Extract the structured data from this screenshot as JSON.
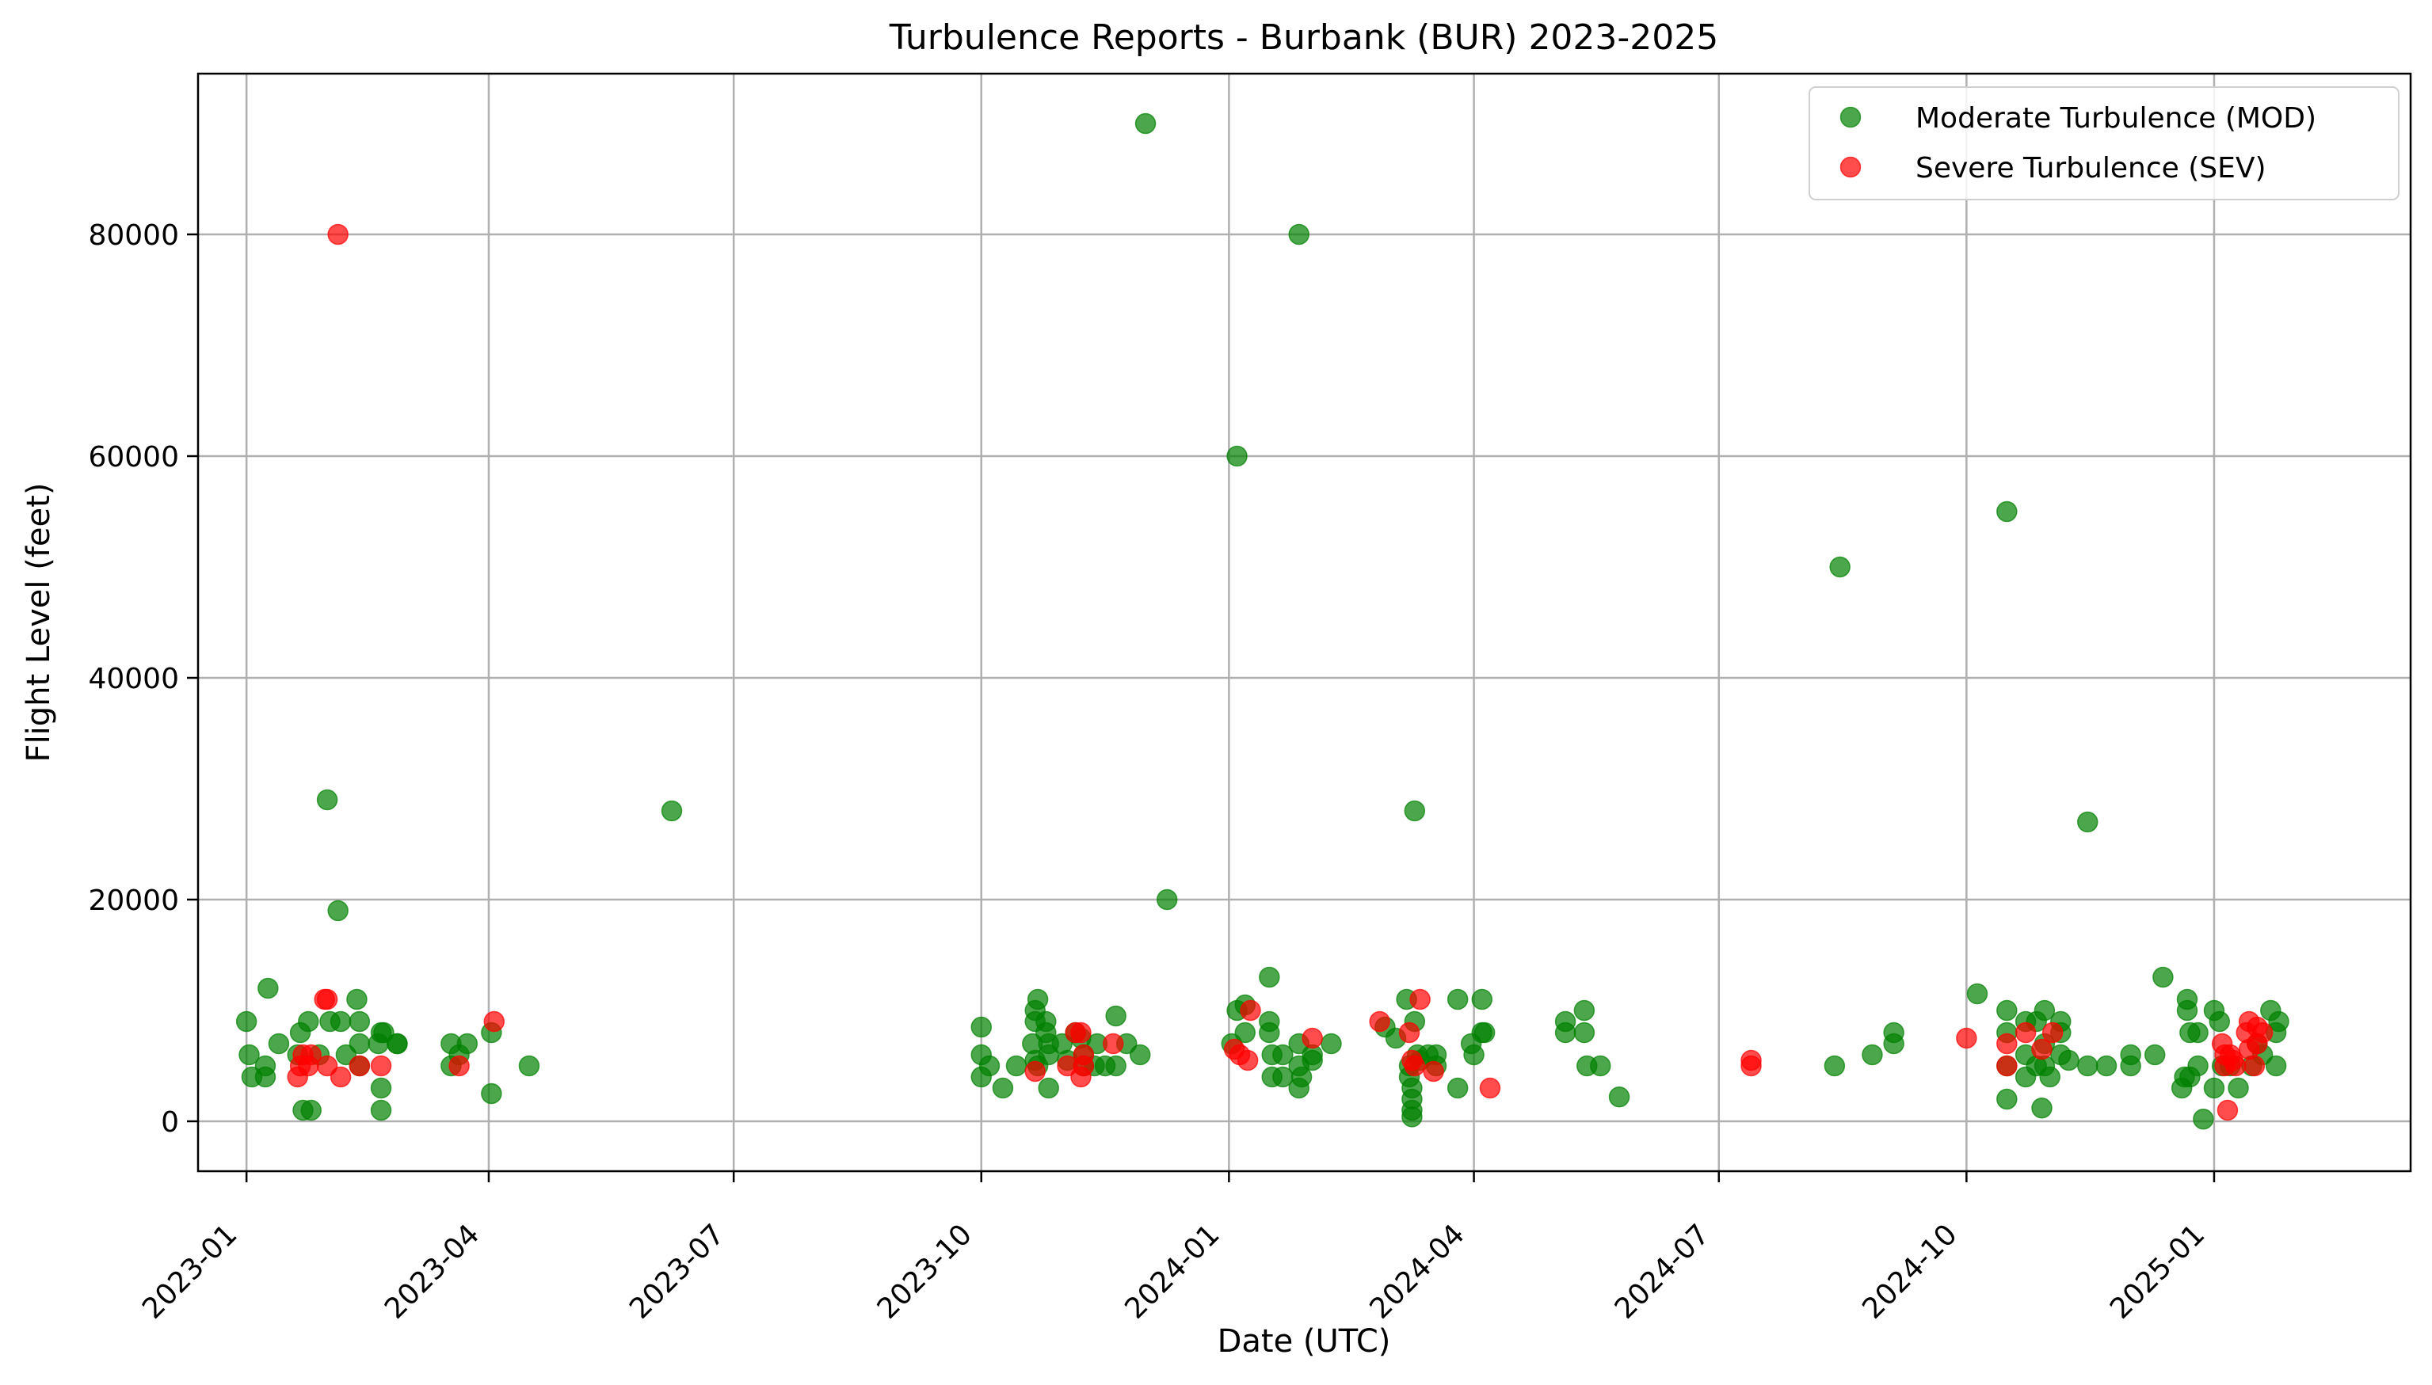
{
  "chart_data": {
    "type": "scatter",
    "title": "Turbulence Reports - Burbank (BUR) 2023-2025",
    "xlabel": "Date (UTC)",
    "ylabel": "Flight Level (feet)",
    "x_type": "date",
    "xlim": [
      "2022-12-14",
      "2025-03-15"
    ],
    "ylim": [
      -4500,
      94500
    ],
    "x_ticks": [
      "2023-01-01",
      "2023-04-01",
      "2023-07-01",
      "2023-10-01",
      "2024-01-01",
      "2024-04-01",
      "2024-07-01",
      "2024-10-01",
      "2025-01-01"
    ],
    "x_tick_labels": [
      "2023-01",
      "2023-04",
      "2023-07",
      "2023-10",
      "2024-01",
      "2024-04",
      "2024-07",
      "2024-10",
      "2025-01"
    ],
    "y_ticks": [
      0,
      20000,
      40000,
      60000,
      80000
    ],
    "y_tick_labels": [
      "0",
      "20000",
      "40000",
      "60000",
      "80000"
    ],
    "grid": true,
    "legend_position": "top-right",
    "series": [
      {
        "name": "Moderate Turbulence (MOD)",
        "color": "#008000",
        "points": [
          [
            "2023-01-01",
            9000
          ],
          [
            "2023-01-02",
            6000
          ],
          [
            "2023-01-03",
            4000
          ],
          [
            "2023-01-08",
            5000
          ],
          [
            "2023-01-08",
            4000
          ],
          [
            "2023-01-09",
            12000
          ],
          [
            "2023-01-13",
            7000
          ],
          [
            "2023-01-20",
            6000
          ],
          [
            "2023-01-21",
            8000
          ],
          [
            "2023-01-22",
            1000
          ],
          [
            "2023-01-24",
            9000
          ],
          [
            "2023-01-25",
            1000
          ],
          [
            "2023-01-28",
            6000
          ],
          [
            "2023-01-31",
            29000
          ],
          [
            "2023-02-01",
            9000
          ],
          [
            "2023-02-04",
            19000
          ],
          [
            "2023-02-05",
            9000
          ],
          [
            "2023-02-07",
            6000
          ],
          [
            "2023-02-11",
            11000
          ],
          [
            "2023-02-12",
            9000
          ],
          [
            "2023-02-12",
            7000
          ],
          [
            "2023-02-12",
            5000
          ],
          [
            "2023-02-19",
            7000
          ],
          [
            "2023-02-20",
            8000
          ],
          [
            "2023-02-20",
            3000
          ],
          [
            "2023-02-20",
            1000
          ],
          [
            "2023-02-21",
            8000
          ],
          [
            "2023-02-26",
            7000
          ],
          [
            "2023-02-26",
            7000
          ],
          [
            "2023-03-18",
            7000
          ],
          [
            "2023-03-18",
            5000
          ],
          [
            "2023-03-21",
            6000
          ],
          [
            "2023-03-24",
            7000
          ],
          [
            "2023-04-02",
            8000
          ],
          [
            "2023-04-02",
            2500
          ],
          [
            "2023-04-16",
            5000
          ],
          [
            "2023-06-08",
            28000
          ],
          [
            "2023-10-01",
            8500
          ],
          [
            "2023-10-01",
            6000
          ],
          [
            "2023-10-01",
            4000
          ],
          [
            "2023-10-04",
            5000
          ],
          [
            "2023-10-09",
            3000
          ],
          [
            "2023-10-14",
            5000
          ],
          [
            "2023-10-20",
            7000
          ],
          [
            "2023-10-21",
            10000
          ],
          [
            "2023-10-21",
            9000
          ],
          [
            "2023-10-21",
            5500
          ],
          [
            "2023-10-22",
            11000
          ],
          [
            "2023-10-22",
            5000
          ],
          [
            "2023-10-25",
            9000
          ],
          [
            "2023-10-25",
            8000
          ],
          [
            "2023-10-26",
            7000
          ],
          [
            "2023-10-26",
            6000
          ],
          [
            "2023-10-26",
            3000
          ],
          [
            "2023-10-31",
            7000
          ],
          [
            "2023-11-02",
            5500
          ],
          [
            "2023-11-05",
            8000
          ],
          [
            "2023-11-07",
            7500
          ],
          [
            "2023-11-08",
            6000
          ],
          [
            "2023-11-08",
            5000
          ],
          [
            "2023-11-12",
            5000
          ],
          [
            "2023-11-13",
            7000
          ],
          [
            "2023-11-16",
            5000
          ],
          [
            "2023-11-20",
            9500
          ],
          [
            "2023-11-20",
            5000
          ],
          [
            "2023-11-24",
            7000
          ],
          [
            "2023-11-29",
            6000
          ],
          [
            "2023-12-01",
            90000
          ],
          [
            "2023-12-09",
            20000
          ],
          [
            "2024-01-02",
            7000
          ],
          [
            "2024-01-04",
            60000
          ],
          [
            "2024-01-04",
            10000
          ],
          [
            "2024-01-07",
            10500
          ],
          [
            "2024-01-07",
            8000
          ],
          [
            "2024-01-16",
            13000
          ],
          [
            "2024-01-16",
            9000
          ],
          [
            "2024-01-16",
            8000
          ],
          [
            "2024-01-17",
            6000
          ],
          [
            "2024-01-17",
            4000
          ],
          [
            "2024-01-21",
            6000
          ],
          [
            "2024-01-21",
            4000
          ],
          [
            "2024-01-27",
            80000
          ],
          [
            "2024-01-27",
            7000
          ],
          [
            "2024-01-27",
            5000
          ],
          [
            "2024-01-27",
            3000
          ],
          [
            "2024-01-28",
            4000
          ],
          [
            "2024-02-01",
            6000
          ],
          [
            "2024-02-01",
            5500
          ],
          [
            "2024-02-08",
            7000
          ],
          [
            "2024-02-28",
            8500
          ],
          [
            "2024-03-03",
            7500
          ],
          [
            "2024-03-07",
            11000
          ],
          [
            "2024-03-08",
            5000
          ],
          [
            "2024-03-08",
            4000
          ],
          [
            "2024-03-09",
            3000
          ],
          [
            "2024-03-09",
            2000
          ],
          [
            "2024-03-09",
            1000
          ],
          [
            "2024-03-09",
            400
          ],
          [
            "2024-03-10",
            28000
          ],
          [
            "2024-03-10",
            9000
          ],
          [
            "2024-03-11",
            6000
          ],
          [
            "2024-03-12",
            5500
          ],
          [
            "2024-03-15",
            6000
          ],
          [
            "2024-03-18",
            6000
          ],
          [
            "2024-03-18",
            5000
          ],
          [
            "2024-03-26",
            11000
          ],
          [
            "2024-03-26",
            3000
          ],
          [
            "2024-03-31",
            7000
          ],
          [
            "2024-04-01",
            6000
          ],
          [
            "2024-04-04",
            11000
          ],
          [
            "2024-04-04",
            8000
          ],
          [
            "2024-04-05",
            8000
          ],
          [
            "2024-05-05",
            9000
          ],
          [
            "2024-05-05",
            8000
          ],
          [
            "2024-05-12",
            10000
          ],
          [
            "2024-05-12",
            8000
          ],
          [
            "2024-05-13",
            5000
          ],
          [
            "2024-05-18",
            5000
          ],
          [
            "2024-05-25",
            2200
          ],
          [
            "2024-08-13",
            5000
          ],
          [
            "2024-08-15",
            50000
          ],
          [
            "2024-08-27",
            6000
          ],
          [
            "2024-09-04",
            8000
          ],
          [
            "2024-09-04",
            7000
          ],
          [
            "2024-10-05",
            11500
          ],
          [
            "2024-10-16",
            55000
          ],
          [
            "2024-10-16",
            10000
          ],
          [
            "2024-10-16",
            8000
          ],
          [
            "2024-10-16",
            5000
          ],
          [
            "2024-10-16",
            2000
          ],
          [
            "2024-10-23",
            9000
          ],
          [
            "2024-10-23",
            6000
          ],
          [
            "2024-10-23",
            4000
          ],
          [
            "2024-10-27",
            9000
          ],
          [
            "2024-10-27",
            5000
          ],
          [
            "2024-10-29",
            1200
          ],
          [
            "2024-10-30",
            10000
          ],
          [
            "2024-10-30",
            7000
          ],
          [
            "2024-10-30",
            5000
          ],
          [
            "2024-11-01",
            4000
          ],
          [
            "2024-11-05",
            9000
          ],
          [
            "2024-11-05",
            8000
          ],
          [
            "2024-11-05",
            6000
          ],
          [
            "2024-11-08",
            5500
          ],
          [
            "2024-11-15",
            27000
          ],
          [
            "2024-11-15",
            5000
          ],
          [
            "2024-11-22",
            5000
          ],
          [
            "2024-12-01",
            6000
          ],
          [
            "2024-12-01",
            5000
          ],
          [
            "2024-12-10",
            6000
          ],
          [
            "2024-12-13",
            13000
          ],
          [
            "2024-12-20",
            3000
          ],
          [
            "2024-12-21",
            4000
          ],
          [
            "2024-12-22",
            11000
          ],
          [
            "2024-12-22",
            10000
          ],
          [
            "2024-12-23",
            8000
          ],
          [
            "2024-12-23",
            4000
          ],
          [
            "2024-12-26",
            8000
          ],
          [
            "2024-12-26",
            5000
          ],
          [
            "2024-12-28",
            200
          ],
          [
            "2025-01-01",
            10000
          ],
          [
            "2025-01-01",
            3000
          ],
          [
            "2025-01-03",
            9000
          ],
          [
            "2025-01-04",
            5000
          ],
          [
            "2025-01-07",
            5000
          ],
          [
            "2025-01-10",
            3000
          ],
          [
            "2025-01-15",
            5000
          ],
          [
            "2025-01-17",
            7000
          ],
          [
            "2025-01-19",
            6000
          ],
          [
            "2025-01-22",
            10000
          ],
          [
            "2025-01-24",
            8000
          ],
          [
            "2025-01-24",
            5000
          ],
          [
            "2025-01-25",
            9000
          ]
        ]
      },
      {
        "name": "Severe Turbulence (SEV)",
        "color": "#ff0000",
        "points": [
          [
            "2023-01-20",
            4000
          ],
          [
            "2023-01-21",
            5000
          ],
          [
            "2023-01-22",
            6000
          ],
          [
            "2023-01-24",
            5000
          ],
          [
            "2023-01-25",
            6000
          ],
          [
            "2023-01-30",
            11000
          ],
          [
            "2023-01-31",
            11000
          ],
          [
            "2023-01-31",
            5000
          ],
          [
            "2023-02-04",
            80000
          ],
          [
            "2023-02-05",
            4000
          ],
          [
            "2023-02-12",
            5000
          ],
          [
            "2023-02-20",
            5000
          ],
          [
            "2023-03-21",
            5000
          ],
          [
            "2023-04-03",
            9000
          ],
          [
            "2023-10-21",
            4500
          ],
          [
            "2023-11-02",
            5000
          ],
          [
            "2023-11-05",
            8000
          ],
          [
            "2023-11-07",
            8000
          ],
          [
            "2023-11-07",
            4000
          ],
          [
            "2023-11-08",
            6000
          ],
          [
            "2023-11-08",
            5000
          ],
          [
            "2023-11-19",
            7000
          ],
          [
            "2024-01-03",
            6500
          ],
          [
            "2024-01-05",
            6000
          ],
          [
            "2024-01-08",
            5500
          ],
          [
            "2024-01-09",
            10000
          ],
          [
            "2024-02-01",
            7500
          ],
          [
            "2024-02-26",
            9000
          ],
          [
            "2024-03-08",
            8000
          ],
          [
            "2024-03-09",
            5500
          ],
          [
            "2024-03-10",
            5000
          ],
          [
            "2024-03-12",
            11000
          ],
          [
            "2024-03-17",
            4500
          ],
          [
            "2024-04-07",
            3000
          ],
          [
            "2024-07-13",
            5500
          ],
          [
            "2024-07-13",
            5000
          ],
          [
            "2024-10-01",
            7500
          ],
          [
            "2024-10-16",
            7000
          ],
          [
            "2024-10-16",
            5000
          ],
          [
            "2024-10-23",
            8000
          ],
          [
            "2024-10-29",
            6500
          ],
          [
            "2024-11-02",
            8000
          ],
          [
            "2025-01-04",
            7000
          ],
          [
            "2025-01-05",
            6000
          ],
          [
            "2025-01-05",
            5000
          ],
          [
            "2025-01-06",
            1000
          ],
          [
            "2025-01-07",
            6000
          ],
          [
            "2025-01-08",
            5500
          ],
          [
            "2025-01-09",
            5000
          ],
          [
            "2025-01-13",
            8000
          ],
          [
            "2025-01-14",
            9000
          ],
          [
            "2025-01-14",
            6500
          ],
          [
            "2025-01-16",
            5000
          ],
          [
            "2025-01-17",
            8500
          ],
          [
            "2025-01-17",
            7000
          ],
          [
            "2025-01-19",
            8000
          ]
        ]
      }
    ]
  }
}
